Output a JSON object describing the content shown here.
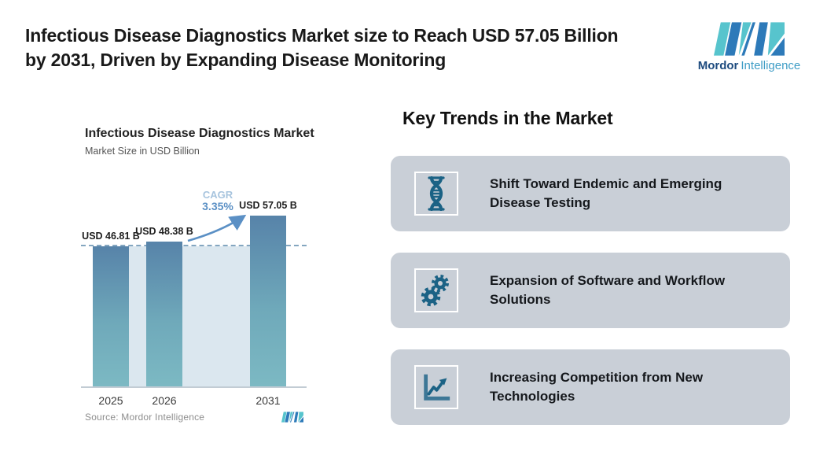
{
  "header": {
    "title_line1": "Infectious Disease Diagnostics Market size to Reach USD 57.05 Billion",
    "title_line2": "by 2031, Driven by Expanding Disease Monitoring",
    "logo": {
      "brand_bold": "Mordor",
      "brand_light": "Intelligence"
    }
  },
  "chart": {
    "title": "Infectious Disease Diagnostics Market",
    "subtitle": "Market Size in USD Billion",
    "cagr_label": "CAGR",
    "cagr_value": "3.35%",
    "source": "Source: Mordor Intelligence"
  },
  "chart_data": {
    "type": "bar",
    "title": "Infectious Disease Diagnostics Market",
    "subtitle": "Market Size in USD Billion",
    "unit": "USD Billion",
    "categories": [
      "2025",
      "2026",
      "2031"
    ],
    "values": [
      46.81,
      48.38,
      57.05
    ],
    "bars": [
      {
        "year": "2025",
        "value": 46.81,
        "label": "USD 46.81 B"
      },
      {
        "year": "2026",
        "value": 48.38,
        "label": "USD 48.38 B"
      },
      {
        "year": "2031",
        "value": 57.05,
        "label": "USD 57.05 B"
      }
    ],
    "annotations": {
      "cagr": "3.35%",
      "reference_line_at": 46.81
    },
    "ylim": [
      0,
      60
    ],
    "grid": false,
    "legend": false
  },
  "trends": {
    "heading": "Key Trends in the Market",
    "items": [
      {
        "icon": "dna-icon",
        "text": "Shift Toward Endemic and Emerging Disease Testing"
      },
      {
        "icon": "gears-icon",
        "text": "Expansion of Software and Workflow Solutions"
      },
      {
        "icon": "chart-icon",
        "text": "Increasing Competition from New Technologies"
      }
    ]
  },
  "colors": {
    "bar_top": "#5783a9",
    "bar_bottom": "#7cb9c3",
    "backdrop": "#dbe7ef",
    "dashed_line": "#84a6c0",
    "arrow": "#5b90c5",
    "card_bg": "#c9cfd7",
    "icon": "#1b6285",
    "logo_blue": "#2d7ab9",
    "logo_teal": "#57c4cd"
  }
}
